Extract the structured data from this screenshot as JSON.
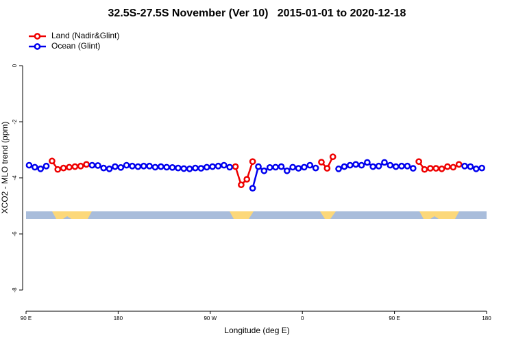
{
  "chart_data": {
    "type": "line",
    "title": "32.5S-27.5S November (Ver 10)   2015-01-01 to 2020-12-18",
    "xlabel": "Longitude (deg E)",
    "ylabel": "XCO2 - MLO trend (ppm)",
    "xlim": [
      90,
      540
    ],
    "ylim": [
      -8.8,
      1.4
    ],
    "xticks": [
      {
        "value": 90,
        "label": "90 E"
      },
      {
        "value": 180,
        "label": "180"
      },
      {
        "value": 270,
        "label": "90 W"
      },
      {
        "value": 360,
        "label": "0"
      },
      {
        "value": 450,
        "label": "90 E"
      },
      {
        "value": 540,
        "label": "180"
      }
    ],
    "yticks": [
      0,
      -2,
      -4,
      -6,
      -8
    ],
    "legend": "top-left",
    "x": [
      93,
      98.6,
      104.2,
      109.8,
      115.4,
      121,
      126.6,
      132.2,
      137.8,
      143.4,
      149,
      154.6,
      160.2,
      165.8,
      171.4,
      177,
      182.6,
      188.2,
      193.8,
      199.4,
      205,
      210.6,
      216.2,
      221.8,
      227.4,
      233,
      238.6,
      244.2,
      249.8,
      255.4,
      261,
      266.6,
      272.2,
      277.8,
      283.4,
      289,
      294.6,
      300.2,
      305.8,
      311.4,
      317,
      322.6,
      328.2,
      333.8,
      339.4,
      345,
      350.6,
      356.2,
      361.8,
      367.4,
      373,
      378.6,
      384.2,
      389.8,
      395.4,
      401,
      406.6,
      412.2,
      417.8,
      423.4,
      429,
      434.6,
      440.2,
      445.8,
      451.4,
      457,
      462.6,
      468.2,
      473.8,
      479.4,
      485,
      490.6,
      496.2,
      501.8,
      507.4,
      513,
      518.6,
      524.2,
      529.8,
      535.4
    ],
    "series": [
      {
        "name": "Land (Nadir&Glint)",
        "color": "#ee0000",
        "values": [
          null,
          null,
          null,
          null,
          -3.4,
          -3.7,
          -3.65,
          -3.62,
          -3.6,
          -3.58,
          -3.52,
          null,
          null,
          null,
          null,
          null,
          null,
          null,
          null,
          null,
          null,
          null,
          null,
          null,
          null,
          null,
          null,
          null,
          null,
          null,
          null,
          null,
          null,
          null,
          null,
          null,
          -3.6,
          -4.25,
          -4.05,
          -3.42,
          null,
          null,
          null,
          null,
          null,
          null,
          null,
          null,
          null,
          null,
          null,
          -3.44,
          -3.66,
          -3.25,
          null,
          null,
          null,
          null,
          null,
          null,
          null,
          null,
          null,
          null,
          null,
          null,
          null,
          null,
          -3.42,
          -3.7,
          -3.66,
          -3.66,
          -3.68,
          -3.6,
          -3.62,
          -3.52,
          null,
          null,
          null,
          null
        ]
      },
      {
        "name": "Ocean (Glint)",
        "color": "#0000ee",
        "values": [
          -3.55,
          -3.62,
          -3.68,
          -3.58,
          null,
          null,
          null,
          null,
          null,
          null,
          null,
          -3.55,
          -3.56,
          -3.65,
          -3.68,
          -3.6,
          -3.63,
          -3.55,
          -3.58,
          -3.6,
          -3.58,
          -3.58,
          -3.62,
          -3.6,
          -3.62,
          -3.63,
          -3.65,
          -3.67,
          -3.68,
          -3.65,
          -3.66,
          -3.62,
          -3.6,
          -3.58,
          -3.55,
          -3.62,
          null,
          null,
          null,
          -4.37,
          -3.6,
          -3.75,
          -3.63,
          -3.62,
          -3.6,
          -3.75,
          -3.62,
          -3.66,
          -3.62,
          -3.55,
          -3.65,
          null,
          null,
          null,
          -3.68,
          -3.6,
          -3.55,
          -3.52,
          -3.55,
          -3.45,
          -3.6,
          -3.58,
          -3.45,
          -3.55,
          -3.6,
          -3.58,
          -3.58,
          -3.66,
          null,
          null,
          null,
          null,
          null,
          null,
          null,
          null,
          -3.58,
          -3.6,
          -3.68,
          -3.65
        ]
      }
    ]
  }
}
